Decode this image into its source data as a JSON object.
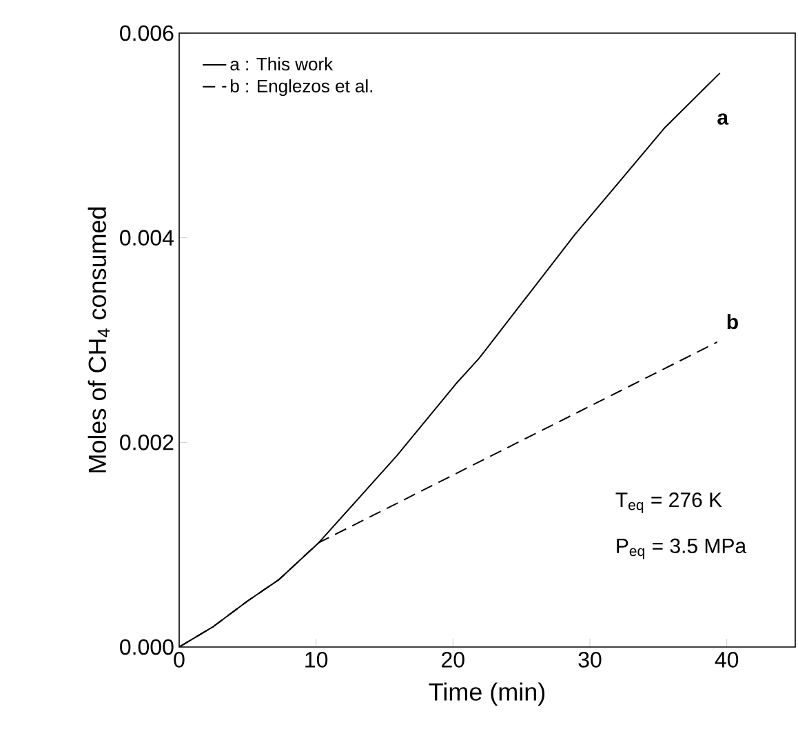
{
  "chart_data": {
    "type": "line",
    "xlabel": "Time (min)",
    "ylabel": "Moles of CH$_{4}$ consumed",
    "xlim": [
      0,
      45
    ],
    "ylim": [
      0,
      0.006
    ],
    "xticks": [
      0,
      10,
      20,
      30,
      40
    ],
    "yticks": [
      {
        "value": 0,
        "label": "0.000"
      },
      {
        "value": 0.002,
        "label": "0.002"
      },
      {
        "value": 0.004,
        "label": "0.004"
      },
      {
        "value": 0.006,
        "label": "0.006"
      }
    ],
    "legend": "top left",
    "grid": false,
    "series": [
      {
        "name": "a : This work",
        "color": "#000000",
        "line_style": "solid",
        "x": [
          0,
          2.5,
          5,
          7.3,
          10.2,
          15.9,
          20.2,
          21.9,
          28.9,
          35.5,
          39.5
        ],
        "values": [
          0,
          0.0002,
          0.00045,
          0.00066,
          0.00102,
          0.00187,
          0.00257,
          0.00282,
          0.00403,
          0.00508,
          0.00561
        ]
      },
      {
        "name": "b : Englezos et al.",
        "color": "#000000",
        "line_style": "dashed",
        "x": [
          0,
          2.5,
          5,
          7.3,
          10.2,
          39.3
        ],
        "values": [
          0,
          0.0002,
          0.00045,
          0.00066,
          0.00102,
          0.00298
        ]
      }
    ],
    "annotations": [
      "a",
      "b",
      "T$_{eq}$ = 276 K",
      "P$_{eq}$ = 3.5 MPa"
    ]
  }
}
